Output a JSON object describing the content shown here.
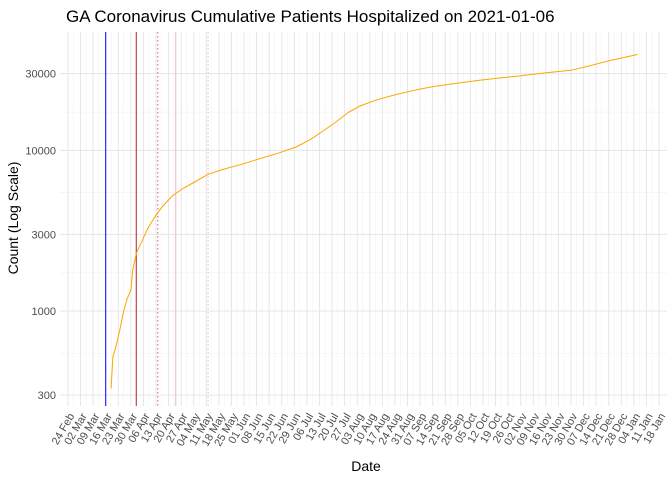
{
  "chart_data": {
    "type": "line",
    "title": "GA Coronavirus Cumulative Patients Hospitalized on 2021-01-06",
    "xlabel": "Date",
    "ylabel": "Count (Log Scale)",
    "y_scale": "log",
    "grid": true,
    "legend": "none",
    "xlim": [
      "2020-02-24",
      "2021-01-18"
    ],
    "ylim": [
      280,
      50000
    ],
    "y_ticks": [
      300,
      1000,
      3000,
      10000,
      30000
    ],
    "y_tick_labels": [
      "300",
      "1000",
      "3000",
      "10000",
      "30000"
    ],
    "x_ticks": [
      "2020-02-24",
      "2020-03-02",
      "2020-03-09",
      "2020-03-16",
      "2020-03-23",
      "2020-03-30",
      "2020-04-06",
      "2020-04-13",
      "2020-04-20",
      "2020-04-27",
      "2020-05-04",
      "2020-05-11",
      "2020-05-18",
      "2020-05-25",
      "2020-06-01",
      "2020-06-08",
      "2020-06-15",
      "2020-06-22",
      "2020-06-29",
      "2020-07-06",
      "2020-07-13",
      "2020-07-20",
      "2020-07-27",
      "2020-08-03",
      "2020-08-10",
      "2020-08-17",
      "2020-08-24",
      "2020-08-31",
      "2020-09-07",
      "2020-09-14",
      "2020-09-21",
      "2020-09-28",
      "2020-10-05",
      "2020-10-12",
      "2020-10-19",
      "2020-10-26",
      "2020-11-02",
      "2020-11-09",
      "2020-11-16",
      "2020-11-23",
      "2020-11-30",
      "2020-12-07",
      "2020-12-14",
      "2020-12-21",
      "2020-12-28",
      "2021-01-04",
      "2021-01-11",
      "2021-01-18"
    ],
    "x_tick_labels": [
      "24 Feb",
      "02 Mar",
      "09 Mar",
      "16 Mar",
      "23 Mar",
      "30 Mar",
      "06 Apr",
      "13 Apr",
      "20 Apr",
      "27 Apr",
      "04 May",
      "11 May",
      "18 May",
      "25 May",
      "01 Jun",
      "08 Jun",
      "15 Jun",
      "22 Jun",
      "29 Jun",
      "06 Jul",
      "13 Jul",
      "20 Jul",
      "27 Jul",
      "03 Aug",
      "10 Aug",
      "17 Aug",
      "24 Aug",
      "31 Aug",
      "07 Sep",
      "14 Sep",
      "21 Sep",
      "28 Sep",
      "05 Oct",
      "12 Oct",
      "19 Oct",
      "26 Oct",
      "02 Nov",
      "09 Nov",
      "16 Nov",
      "23 Nov",
      "30 Nov",
      "07 Dec",
      "14 Dec",
      "21 Dec",
      "28 Dec",
      "04 Jan",
      "11 Jan",
      "18 Jan"
    ],
    "series": [
      {
        "color": "#FFA500",
        "points": [
          [
            "2020-03-19",
            330
          ],
          [
            "2020-03-20",
            520
          ],
          [
            "2020-03-22",
            620
          ],
          [
            "2020-03-24",
            780
          ],
          [
            "2020-03-26",
            1000
          ],
          [
            "2020-03-28",
            1200
          ],
          [
            "2020-03-30",
            1350
          ],
          [
            "2020-03-31",
            1800
          ],
          [
            "2020-04-02",
            2300
          ],
          [
            "2020-04-05",
            2700
          ],
          [
            "2020-04-08",
            3200
          ],
          [
            "2020-04-12",
            3800
          ],
          [
            "2020-04-16",
            4400
          ],
          [
            "2020-04-22",
            5200
          ],
          [
            "2020-04-28",
            5800
          ],
          [
            "2020-05-05",
            6400
          ],
          [
            "2020-05-12",
            7100
          ],
          [
            "2020-05-20",
            7600
          ],
          [
            "2020-05-31",
            8200
          ],
          [
            "2020-06-10",
            8900
          ],
          [
            "2020-06-20",
            9600
          ],
          [
            "2020-06-30",
            10500
          ],
          [
            "2020-07-08",
            11700
          ],
          [
            "2020-07-15",
            13200
          ],
          [
            "2020-07-22",
            15000
          ],
          [
            "2020-07-29",
            17200
          ],
          [
            "2020-08-05",
            19000
          ],
          [
            "2020-08-15",
            20800
          ],
          [
            "2020-08-25",
            22300
          ],
          [
            "2020-09-05",
            23800
          ],
          [
            "2020-09-15",
            25000
          ],
          [
            "2020-09-28",
            26200
          ],
          [
            "2020-10-10",
            27300
          ],
          [
            "2020-10-20",
            28100
          ],
          [
            "2020-11-01",
            29000
          ],
          [
            "2020-11-15",
            30300
          ],
          [
            "2020-11-30",
            31500
          ],
          [
            "2020-12-10",
            33500
          ],
          [
            "2020-12-20",
            35800
          ],
          [
            "2020-12-30",
            38000
          ],
          [
            "2021-01-06",
            39500
          ]
        ]
      }
    ],
    "vlines": [
      {
        "date": "2020-03-16",
        "color": "#0000FF",
        "style": "solid"
      },
      {
        "date": "2020-04-02",
        "color": "#B22222",
        "style": "solid"
      },
      {
        "date": "2020-04-14",
        "color": "#CD5C7A",
        "style": "dotted"
      },
      {
        "date": "2020-04-24",
        "color": "#F4B6C2",
        "style": "solid"
      },
      {
        "date": "2020-05-12",
        "color": "#F4B6C2",
        "style": "dotted"
      }
    ]
  }
}
